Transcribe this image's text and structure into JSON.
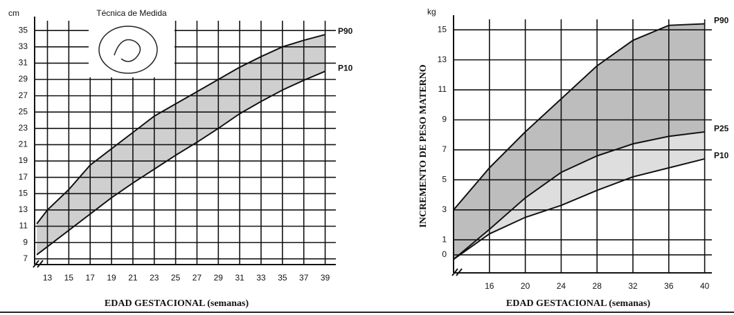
{
  "chart_data": [
    {
      "type": "line",
      "y_unit": "cm",
      "annotation": "Técnica de Medida",
      "x_label": "EDAD GESTACIONAL (semanas)",
      "x": [
        12,
        13,
        15,
        17,
        19,
        21,
        23,
        25,
        27,
        29,
        31,
        33,
        35,
        37,
        39
      ],
      "series": [
        {
          "name": "P90",
          "color": "#111111",
          "fill": "#cfcfcf",
          "values": [
            11.3,
            13,
            15.5,
            18.5,
            20.5,
            22.5,
            24.5,
            26,
            27.5,
            29,
            30.5,
            31.8,
            33,
            33.8,
            34.5
          ]
        },
        {
          "name": "P10",
          "color": "#111111",
          "values": [
            7.5,
            8.5,
            10.5,
            12.5,
            14.5,
            16.3,
            18,
            19.7,
            21.3,
            23,
            24.8,
            26.3,
            27.7,
            28.9,
            30
          ]
        }
      ],
      "xlim": [
        11.8,
        40
      ],
      "xticks": [
        13,
        15,
        17,
        19,
        21,
        23,
        25,
        27,
        29,
        31,
        33,
        35,
        37,
        39
      ],
      "ylim": [
        6.3,
        36.2
      ],
      "yticks": [
        7,
        9,
        11,
        13,
        15,
        17,
        19,
        21,
        23,
        25,
        27,
        29,
        31,
        33,
        35
      ],
      "grid": true
    },
    {
      "type": "line",
      "y_unit": "kg",
      "x_label": "EDAD GESTACIONAL (semanas)",
      "y_label": "INCREMENTO DE PESO MATERNO",
      "x": [
        12,
        16,
        20,
        24,
        28,
        32,
        36,
        40
      ],
      "series": [
        {
          "name": "P90",
          "color": "#111111",
          "fill": "#bdbdbd",
          "values": [
            3,
            5.8,
            8.2,
            10.4,
            12.6,
            14.3,
            15.3,
            15.4
          ]
        },
        {
          "name": "P25",
          "color": "#111111",
          "fill": "#dedede",
          "values": [
            -0.3,
            1.7,
            3.8,
            5.5,
            6.6,
            7.4,
            7.9,
            8.2
          ]
        },
        {
          "name": "P10",
          "color": "#111111",
          "values": [
            -0.3,
            1.4,
            2.5,
            3.3,
            4.3,
            5.2,
            5.8,
            6.4
          ]
        }
      ],
      "xlim": [
        12,
        40.8
      ],
      "xticks": [
        16,
        20,
        24,
        28,
        32,
        36,
        40
      ],
      "ylim": [
        -1.2,
        15.7
      ],
      "yticks": [
        0,
        1,
        3,
        5,
        7,
        9,
        11,
        13,
        15
      ],
      "grid": true
    }
  ]
}
